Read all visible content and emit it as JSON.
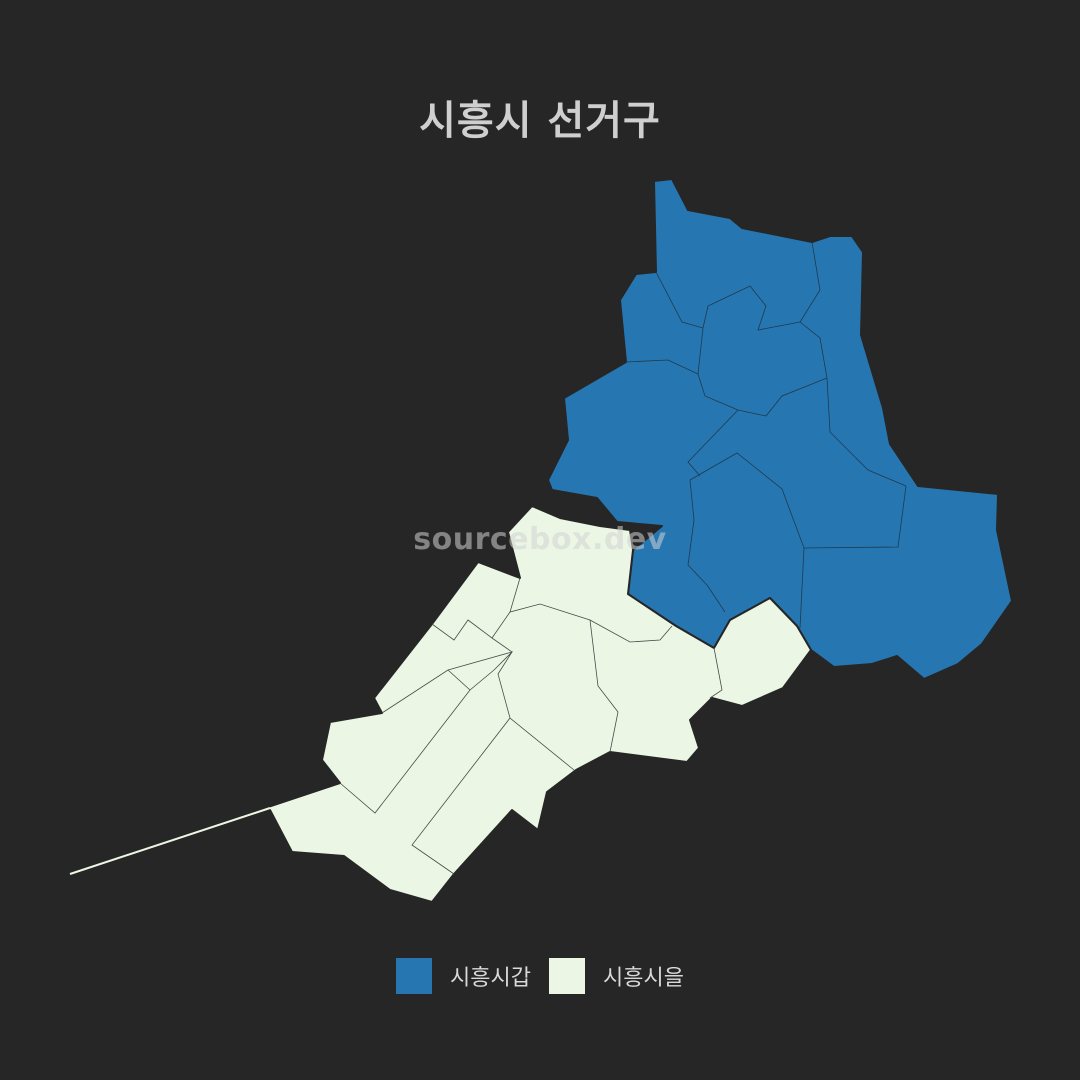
{
  "title": "시흥시 선거구",
  "watermark": "sourcebox.dev",
  "map": {
    "districts": [
      {
        "name": "시흥시갑",
        "color": "#2677b1"
      },
      {
        "name": "시흥시을",
        "color": "#ebf7e4"
      }
    ],
    "border_color": "#262626"
  },
  "legend": {
    "items": [
      {
        "label": "시흥시갑",
        "color": "#2677b1"
      },
      {
        "label": "시흥시을",
        "color": "#ebf7e4"
      }
    ]
  }
}
